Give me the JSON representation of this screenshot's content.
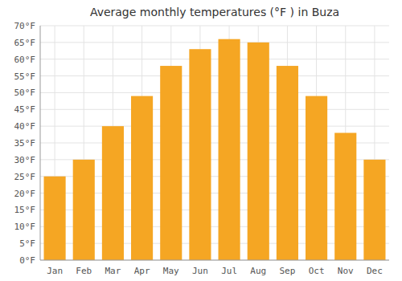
{
  "chart_data": {
    "type": "bar",
    "title": "Average monthly temperatures (°F ) in Buza",
    "categories": [
      "Jan",
      "Feb",
      "Mar",
      "Apr",
      "May",
      "Jun",
      "Jul",
      "Aug",
      "Sep",
      "Oct",
      "Nov",
      "Dec"
    ],
    "values": [
      25,
      30,
      40,
      49,
      58,
      63,
      66,
      65,
      58,
      49,
      38,
      30
    ],
    "color": "#F5A623",
    "ylim": [
      0,
      70
    ],
    "yticks": [
      {
        "value": 0,
        "label": "0°F"
      },
      {
        "value": 5,
        "label": "5°F"
      },
      {
        "value": 10,
        "label": "10°F"
      },
      {
        "value": 15,
        "label": "15°F"
      },
      {
        "value": 20,
        "label": "20°F"
      },
      {
        "value": 25,
        "label": "25°F"
      },
      {
        "value": 30,
        "label": "30°F"
      },
      {
        "value": 35,
        "label": "35°F"
      },
      {
        "value": 40,
        "label": "40°F"
      },
      {
        "value": 45,
        "label": "45°F"
      },
      {
        "value": 50,
        "label": "50°F"
      },
      {
        "value": 55,
        "label": "55°F"
      },
      {
        "value": 60,
        "label": "60°F"
      },
      {
        "value": 65,
        "label": "65°F"
      },
      {
        "value": 70,
        "label": "70°F"
      }
    ],
    "grid": true
  }
}
